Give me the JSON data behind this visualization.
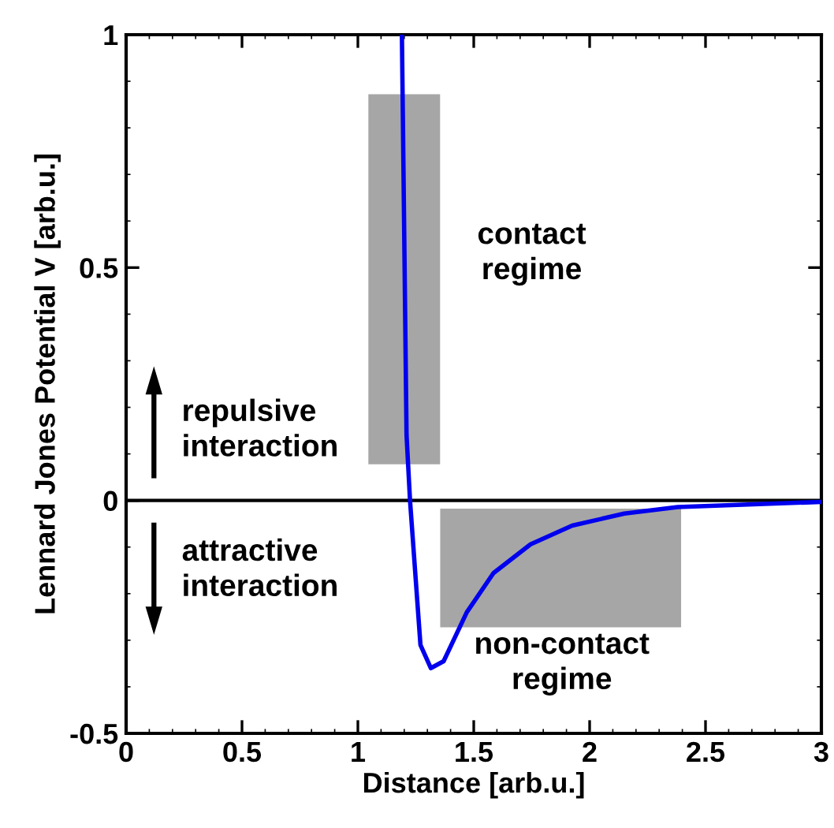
{
  "chart_data": {
    "type": "line",
    "xlabel": "Distance [arb.u.]",
    "ylabel": "Lennard Jones Potential V [arb.u.]",
    "x": [
      1.19,
      1.21,
      1.225,
      1.27,
      1.315,
      1.37,
      1.47,
      1.585,
      1.745,
      1.925,
      2.15,
      2.38,
      3.0
    ],
    "series": [
      {
        "color": "#0000ee",
        "values": [
          1.0,
          0.14,
          0.0,
          -0.31,
          -0.36,
          -0.345,
          -0.24,
          -0.156,
          -0.094,
          -0.054,
          -0.028,
          -0.014,
          -0.003
        ]
      }
    ],
    "xlim": [
      0,
      3
    ],
    "xticks": [
      0,
      0.5,
      1,
      1.5,
      2,
      2.5,
      3
    ],
    "ylim": [
      -0.5,
      1
    ],
    "yticks": [
      -0.5,
      0,
      0.5,
      1
    ],
    "ref_lines": [
      {
        "axis": "y",
        "value": 0,
        "color": "#000000"
      }
    ],
    "annotations": [
      "contact regime",
      "non-contact regime",
      "repulsive interaction",
      "attractive interaction"
    ],
    "grid": false,
    "marker": "none",
    "line_style": "solid"
  }
}
